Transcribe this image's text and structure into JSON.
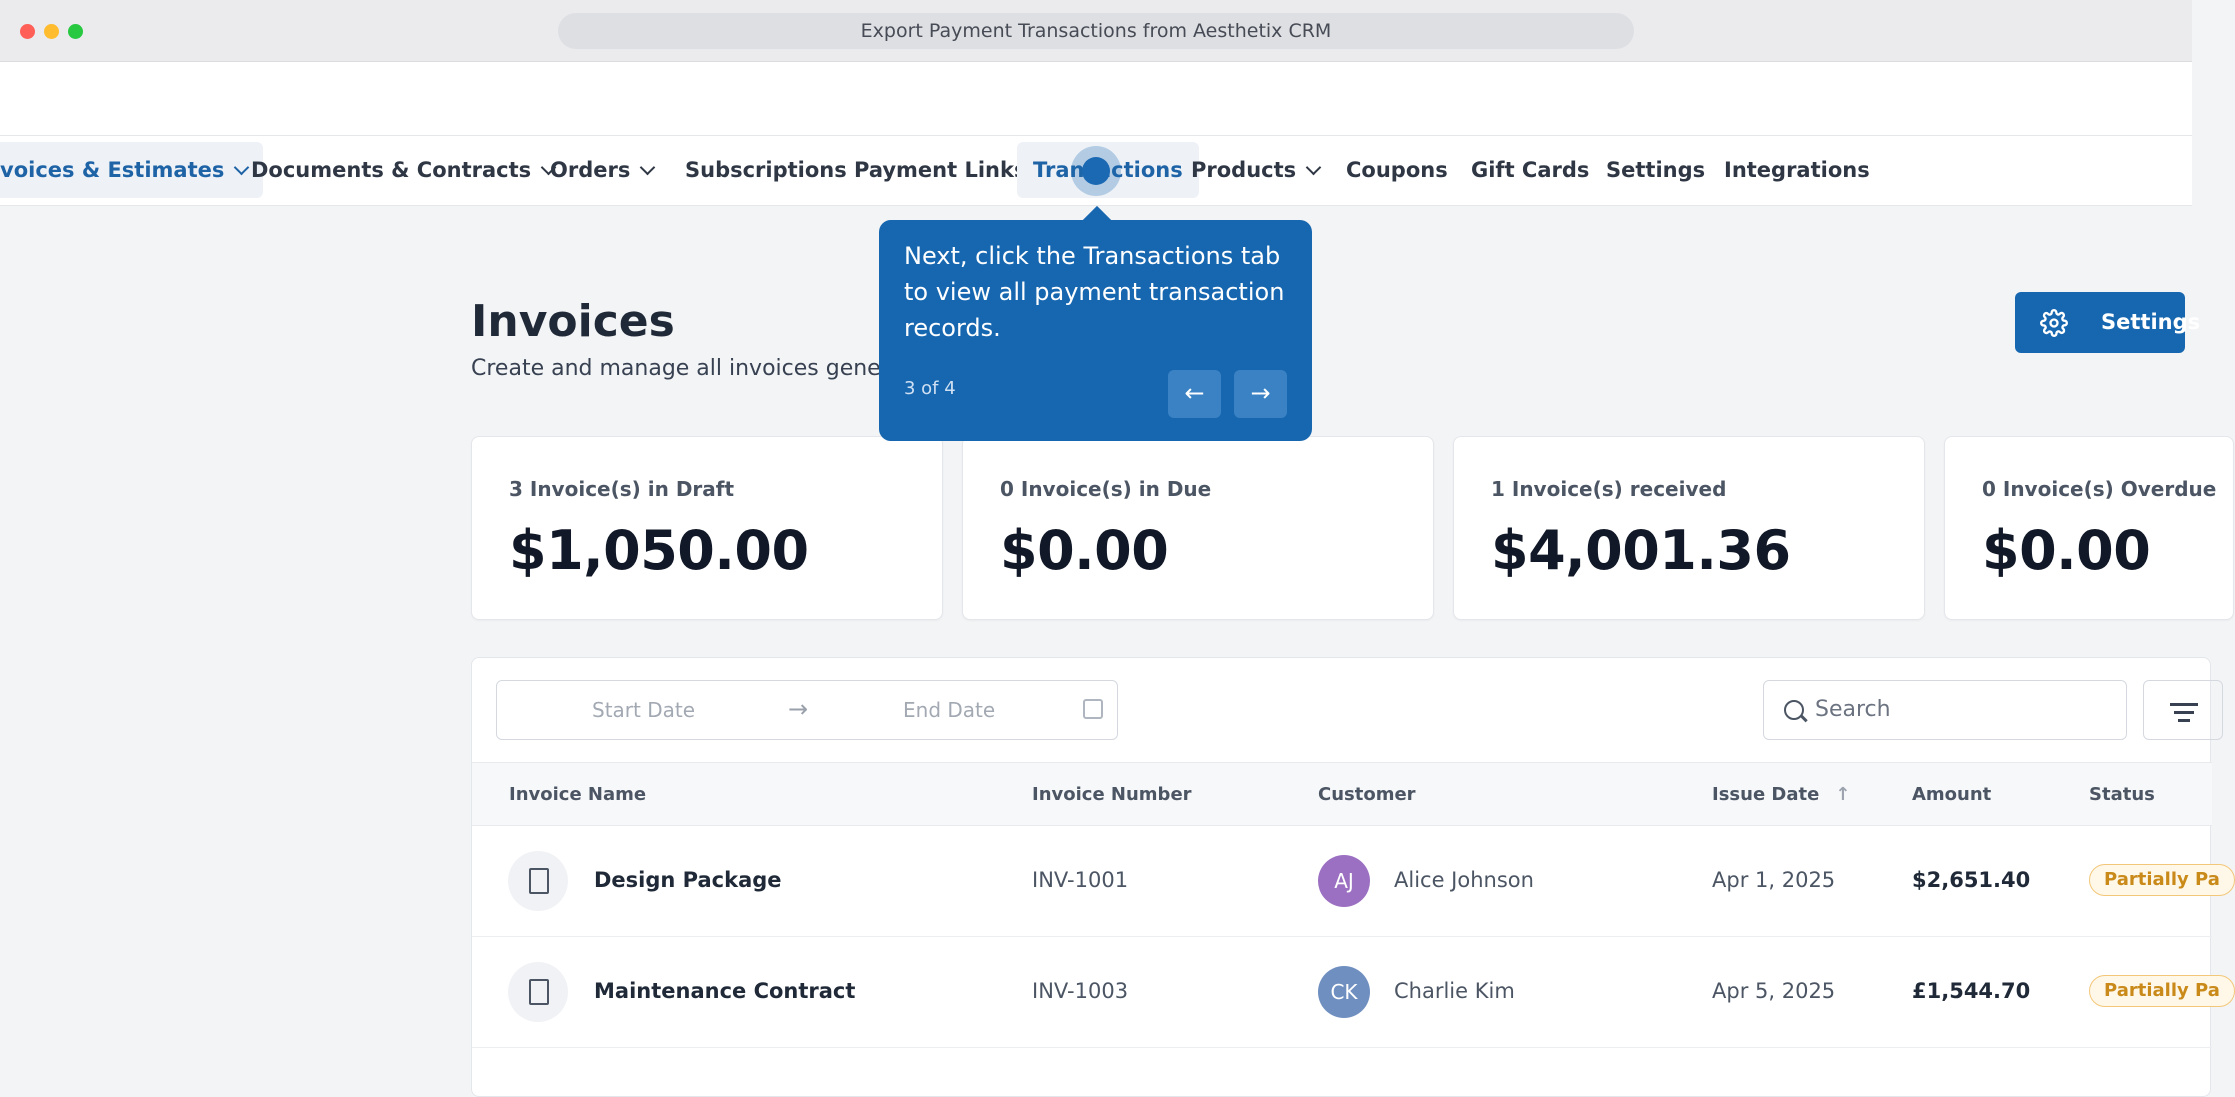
{
  "window": {
    "title": "Export Payment Transactions from Aesthetix CRM"
  },
  "nav": {
    "tabs": [
      {
        "label": "voices & Estimates",
        "dropdown": true
      },
      {
        "label": "Documents & Contracts",
        "dropdown": true
      },
      {
        "label": "Orders",
        "dropdown": true
      },
      {
        "label": "Subscriptions",
        "dropdown": false
      },
      {
        "label": "Payment Links",
        "dropdown": false
      },
      {
        "label": "Transactions",
        "dropdown": false
      },
      {
        "label": "Products",
        "dropdown": true
      },
      {
        "label": "Coupons",
        "dropdown": false
      },
      {
        "label": "Gift Cards",
        "dropdown": false
      },
      {
        "label": "Settings",
        "dropdown": false
      },
      {
        "label": "Integrations",
        "dropdown": false
      }
    ]
  },
  "page": {
    "title": "Invoices",
    "subtitle": "Create and manage all invoices genera",
    "settings_label": "Settings"
  },
  "summary": [
    {
      "label": "3 Invoice(s) in Draft",
      "value": "$1,050.00"
    },
    {
      "label": "0 Invoice(s) in Due",
      "value": "$0.00"
    },
    {
      "label": "1 Invoice(s) received",
      "value": "$4,001.36"
    },
    {
      "label": "0 Invoice(s) Overdue",
      "value": "$0.00"
    }
  ],
  "filters": {
    "start_placeholder": "Start Date",
    "end_placeholder": "End Date",
    "search_placeholder": "Search"
  },
  "table": {
    "columns": [
      "Invoice Name",
      "Invoice Number",
      "Customer",
      "Issue Date",
      "Amount",
      "Status"
    ],
    "rows": [
      {
        "name": "Design Package",
        "number": "INV-1001",
        "initials": "AJ",
        "avatar_color": "#9b6fc1",
        "customer": "Alice Johnson",
        "date": "Apr 1, 2025",
        "amount": "$2,651.40",
        "status": "Partially Pa"
      },
      {
        "name": "Maintenance Contract",
        "number": "INV-1003",
        "initials": "CK",
        "avatar_color": "#6f8fc0",
        "customer": "Charlie Kim",
        "date": "Apr 5, 2025",
        "amount": "£1,544.70",
        "status": "Partially Pa"
      }
    ]
  },
  "tour": {
    "text": "Next, click the Transactions tab to view all payment transaction records.",
    "step": "3 of 4",
    "prev_icon": "arrow-left-icon",
    "next_icon": "arrow-right-icon"
  },
  "colors": {
    "accent": "#1767b0",
    "status_partial": "#c98a1a"
  }
}
